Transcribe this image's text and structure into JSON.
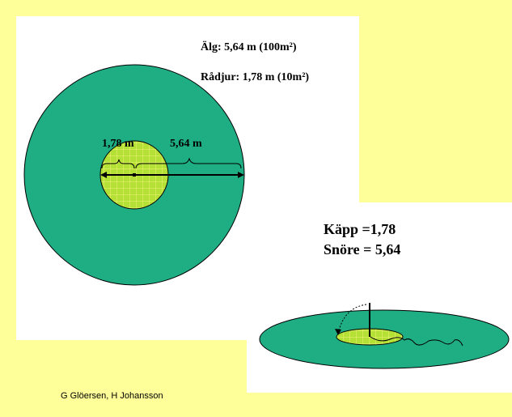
{
  "legend": {
    "line1": "Älg: 5,64 m (100m²)",
    "line2": "Rådjur: 1,78 m (10m²)"
  },
  "main_diagram": {
    "inner_radius_label": "1,78 m",
    "outer_radius_label": "5,64 m"
  },
  "tools": {
    "line1": "Käpp =1,78",
    "line2": "Snöre = 5,64"
  },
  "credit": "G Glöersen, H Johansson",
  "colors": {
    "background": "#ffff99",
    "outer_circle": "#1fae84",
    "inner_circle": "#b5e035",
    "grid_lines": "#f4f27a"
  }
}
